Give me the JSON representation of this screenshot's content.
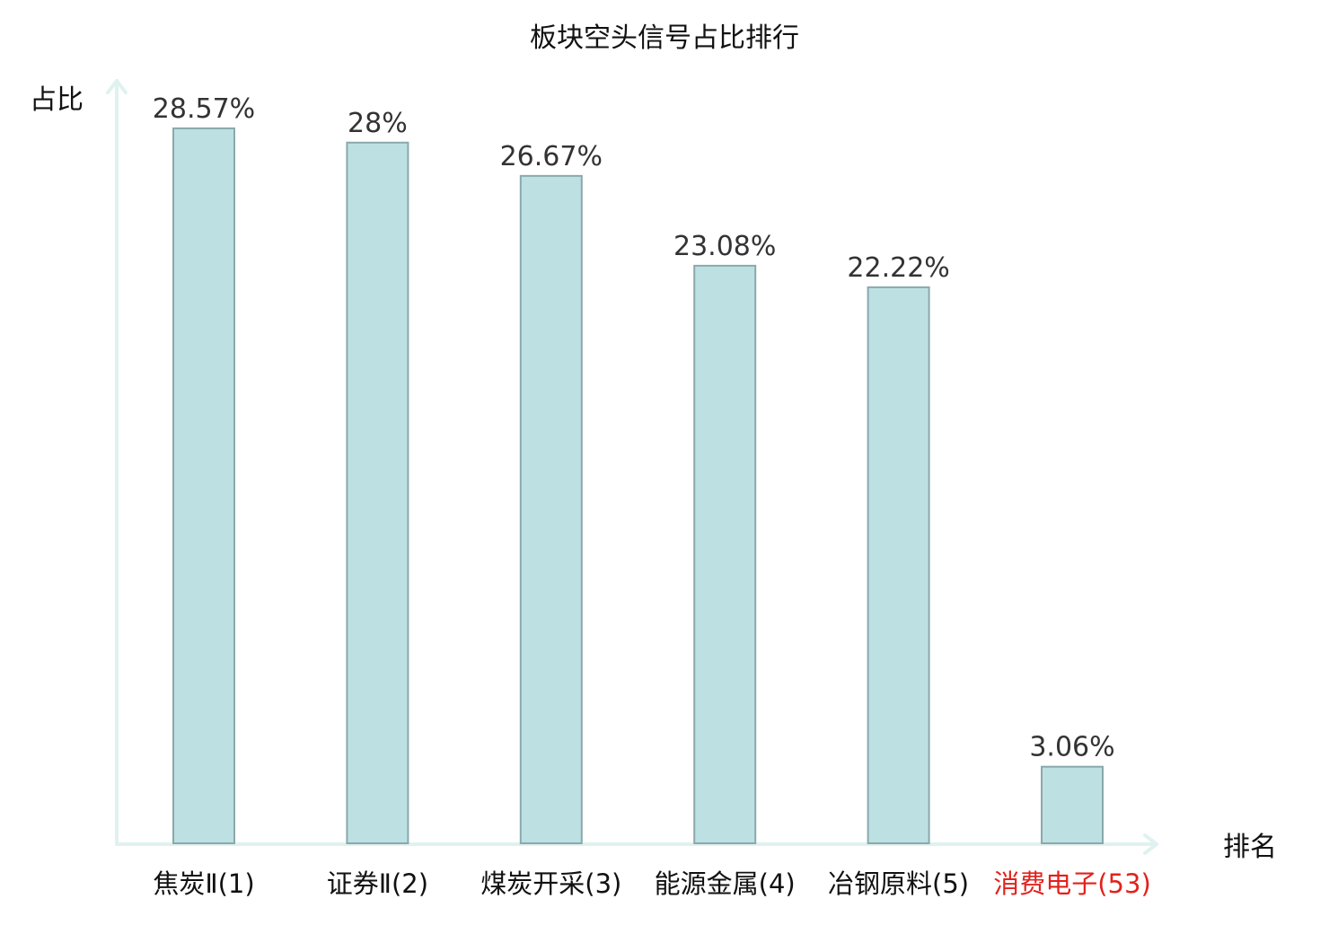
{
  "chart_data": {
    "type": "bar",
    "title": "板块空头信号占比排行",
    "ylabel": "占比",
    "xlabel": "排名",
    "categories": [
      "焦炭Ⅱ(1)",
      "证券Ⅱ(2)",
      "煤炭开采(3)",
      "能源金属(4)",
      "冶钢原料(5)",
      "消费电子(53)"
    ],
    "values": [
      28.57,
      28,
      26.67,
      23.08,
      22.22,
      3.06
    ],
    "value_labels": [
      "28.57%",
      "28%",
      "26.67%",
      "23.08%",
      "22.22%",
      "3.06%"
    ],
    "highlight_index": 5,
    "ylim": [
      0,
      29.5
    ],
    "grid": false,
    "legend": "none",
    "colors": {
      "bar_fill": "#bde0e3",
      "bar_stroke": "#8aa9ac",
      "axis": "#dff2ef",
      "highlight_text": "#e3211c"
    }
  }
}
